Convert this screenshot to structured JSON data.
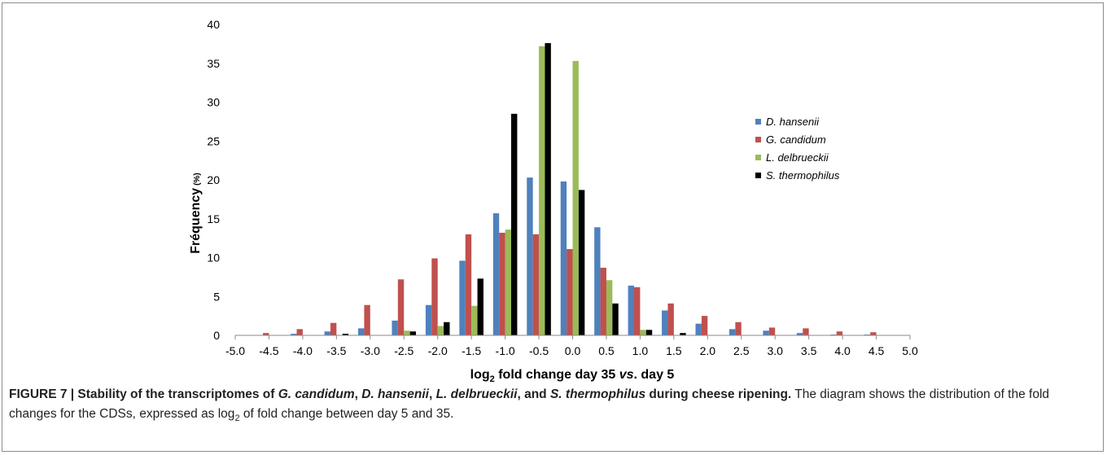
{
  "chart_data": {
    "type": "bar",
    "categories": [
      "-4.5",
      "-4.0",
      "-3.5",
      "-3.0",
      "-2.5",
      "-2.0",
      "-1.5",
      "-1.0",
      "-0.5",
      "0.0",
      "0.5",
      "1.0",
      "1.5",
      "2.0",
      "2.5",
      "3.0",
      "3.5",
      "4.0",
      "4.5"
    ],
    "series": [
      {
        "name": "D. hansenii",
        "color": "#4f81bd",
        "values": [
          0,
          0.2,
          0.5,
          0.9,
          1.9,
          3.9,
          9.6,
          15.7,
          20.3,
          19.8,
          13.9,
          6.4,
          3.2,
          1.5,
          0.8,
          0.6,
          0.3,
          0.1,
          0.1
        ]
      },
      {
        "name": "G. candidum",
        "color": "#c0504d",
        "values": [
          0.3,
          0.8,
          1.6,
          3.9,
          7.2,
          9.9,
          13.0,
          13.2,
          13.0,
          11.1,
          8.7,
          6.2,
          4.1,
          2.5,
          1.7,
          1.0,
          0.9,
          0.5,
          0.4
        ]
      },
      {
        "name": "L. delbrueckii",
        "color": "#9bbb59",
        "values": [
          0,
          0,
          0,
          0,
          0.6,
          1.2,
          3.8,
          13.6,
          37.2,
          35.3,
          7.1,
          0.7,
          0,
          0,
          0,
          0,
          0,
          0,
          0
        ]
      },
      {
        "name": "S. thermophilus",
        "color": "#000000",
        "values": [
          0,
          0,
          0.2,
          0,
          0.5,
          1.7,
          7.3,
          28.5,
          37.6,
          18.7,
          4.1,
          0.7,
          0.3,
          0,
          0,
          0,
          0,
          0,
          0
        ]
      }
    ],
    "x_ticks": [
      "-5.0",
      "-4.5",
      "-4.0",
      "-3.5",
      "-3.0",
      "-2.5",
      "-2.0",
      "-1.5",
      "-1.0",
      "-0.5",
      "0.0",
      "0.5",
      "1.0",
      "1.5",
      "2.0",
      "2.5",
      "3.0",
      "3.5",
      "4.0",
      "4.5",
      "5.0"
    ],
    "y_ticks": [
      "0",
      "5",
      "10",
      "15",
      "20",
      "25",
      "30",
      "35",
      "40"
    ],
    "xlim": [
      -5,
      5
    ],
    "ylim": [
      0,
      40
    ],
    "ylabel_main": "Fréquency",
    "ylabel_unit": "(%)",
    "xlabel_parts": {
      "pre": "log",
      "sub": "2",
      "mid": " fold change day 35 ",
      "italic": "vs",
      "post": ". day 5"
    },
    "legend_position": "right",
    "grid": false
  },
  "caption": {
    "bold_parts": [
      {
        "t": "FIGURE 7 | Stability of the transcriptomes of ",
        "i": false
      },
      {
        "t": "G. candidum",
        "i": true
      },
      {
        "t": ", ",
        "i": false
      },
      {
        "t": "D. hansenii",
        "i": true
      },
      {
        "t": ", ",
        "i": false
      },
      {
        "t": "L. delbrueckii",
        "i": true
      },
      {
        "t": ", and ",
        "i": false
      },
      {
        "t": "S. thermophilus",
        "i": true
      },
      {
        "t": " during cheese ripening.",
        "i": false
      }
    ],
    "text_pre": " The diagram shows the distribution of the fold changes for the CDSs, expressed as log",
    "text_sub": "2",
    "text_post": " of fold change between day 5 and 35."
  }
}
